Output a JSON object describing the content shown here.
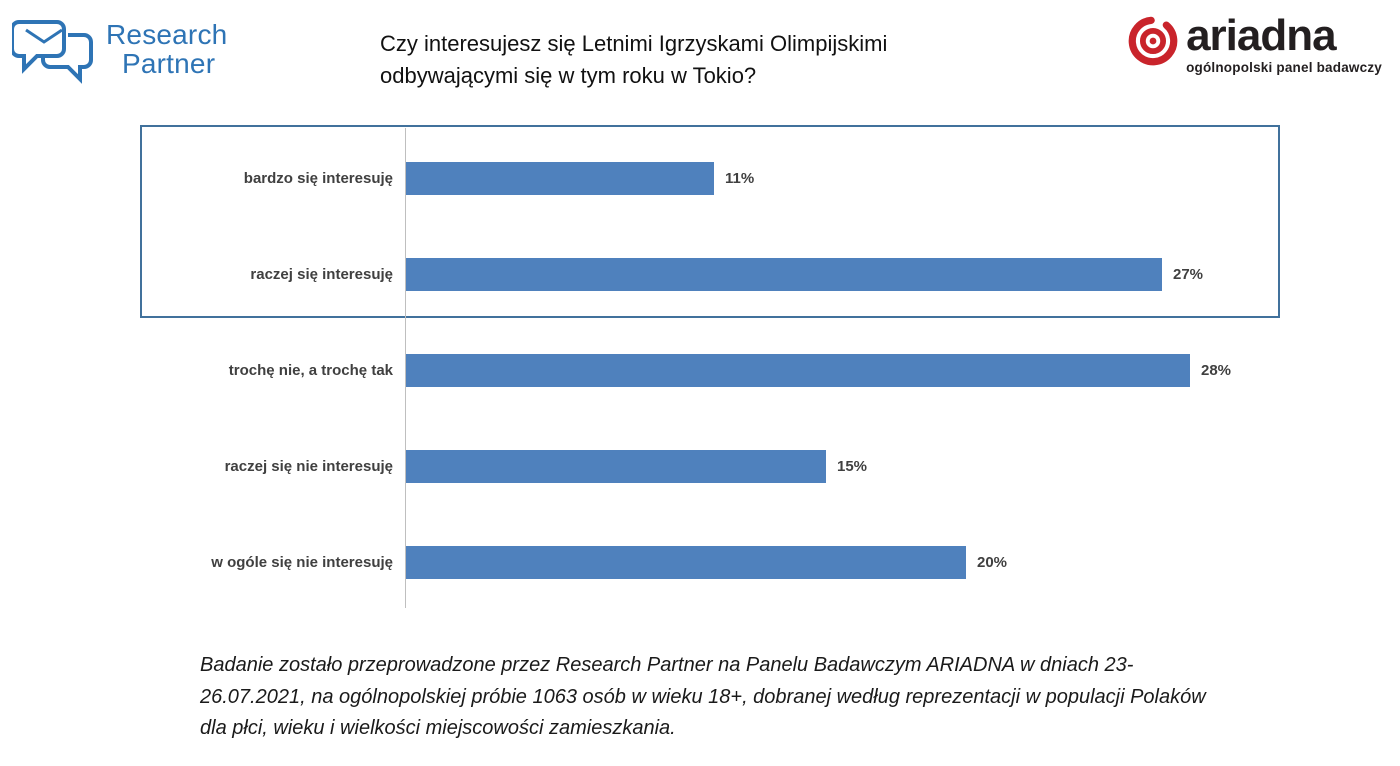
{
  "header": {
    "research_partner_logo": {
      "line1": "Research",
      "line2": "Partner"
    },
    "title_lines": [
      "Czy interesujesz się Letnimi Igrzyskami Olimpijskimi",
      "odbywającymi się w tym roku w Tokio?"
    ],
    "ariadna_logo": {
      "name": "ariadna",
      "subtitle": "ogólnopolski panel badawczy"
    }
  },
  "chart_data": {
    "type": "bar",
    "orientation": "horizontal",
    "categories": [
      "bardzo się interesuję",
      "raczej się interesuję",
      "trochę nie, a trochę tak",
      "raczej się nie interesuję",
      "w ogóle się nie interesuję"
    ],
    "values": [
      11,
      27,
      28,
      15,
      20
    ],
    "value_labels": [
      "11%",
      "27%",
      "28%",
      "15%",
      "20%"
    ],
    "bar_color": "#4F81BD",
    "xlim": [
      0,
      30
    ],
    "grid": false,
    "legend": false,
    "highlighted_rows": [
      0,
      1
    ],
    "highlight_box_color": "#41719C"
  },
  "footer": {
    "text": "Badanie zostało przeprowadzone przez Research Partner na Panelu Badawczym ARIADNA w dniach 23-26.07.2021, na ogólnopolskiej próbie 1063 osób w wieku 18+, dobranej według reprezentacji w populacji Polaków dla płci, wieku i wielkości miejscowości zamieszkania."
  },
  "colors": {
    "research_partner_blue": "#2E74B5",
    "ariadna_red": "#C9242B",
    "label_gray": "#404040",
    "axis_gray": "#BFBFBF"
  }
}
